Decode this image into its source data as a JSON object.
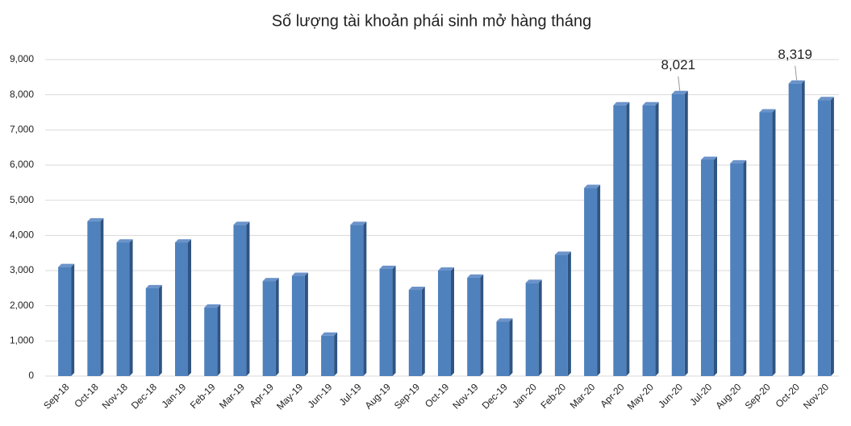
{
  "chart_data": {
    "type": "bar",
    "title": "Số lượng tài khoản phái sinh mở hàng tháng",
    "categories": [
      "Sep-18",
      "Oct-18",
      "Nov-18",
      "Dec-18",
      "Jan-19",
      "Feb-19",
      "Mar-19",
      "Apr-19",
      "May-19",
      "Jun-19",
      "Jul-19",
      "Aug-19",
      "Sep-19",
      "Oct-19",
      "Nov-19",
      "Dec-19",
      "Jan-20",
      "Feb-20",
      "Mar-20",
      "Apr-20",
      "May-20",
      "Jun-20",
      "Jul-20",
      "Aug-20",
      "Sep-20",
      "Oct-20",
      "Nov-20"
    ],
    "values": [
      3100,
      4400,
      3800,
      2500,
      3800,
      1950,
      4300,
      2700,
      2850,
      1150,
      4300,
      3050,
      2450,
      3000,
      2800,
      1550,
      2650,
      3450,
      5350,
      7700,
      7700,
      8021,
      6150,
      6050,
      7500,
      8319,
      7850
    ],
    "value_labels": [
      null,
      null,
      null,
      null,
      null,
      null,
      null,
      null,
      null,
      null,
      null,
      null,
      null,
      null,
      null,
      null,
      null,
      null,
      null,
      null,
      null,
      "8,021",
      null,
      null,
      null,
      "8,319",
      null
    ],
    "color": "#4f81bd",
    "ylim": [
      0,
      9000
    ],
    "yticks": [
      0,
      {
        "value": 1000,
        "label": "1,000"
      },
      {
        "value": 2000,
        "label": "2,000"
      },
      {
        "value": 3000,
        "label": "3,000"
      },
      {
        "value": 4000,
        "label": "4,000"
      },
      {
        "value": 5000,
        "label": "5,000"
      },
      {
        "value": 6000,
        "label": "6,000"
      },
      {
        "value": 7000,
        "label": "7,000"
      },
      {
        "value": 8000,
        "label": "8,000"
      },
      {
        "value": 9000,
        "label": "9,000"
      }
    ],
    "grid": true
  }
}
